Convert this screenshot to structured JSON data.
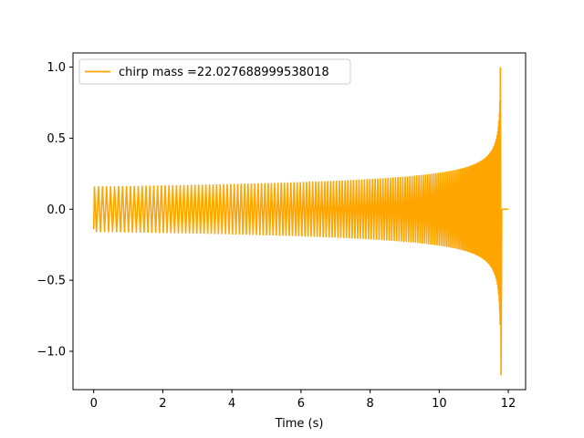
{
  "chart_data": {
    "type": "line",
    "title": "",
    "xlabel": "Time (s)",
    "ylabel": "",
    "xlim": [
      -0.6,
      12.5
    ],
    "ylim": [
      -1.27,
      1.1
    ],
    "xticks": [
      0,
      2,
      4,
      6,
      8,
      10,
      12
    ],
    "xtick_labels": [
      "0",
      "2",
      "4",
      "6",
      "8",
      "10",
      "12"
    ],
    "yticks": [
      1.0,
      0.5,
      0.0,
      -0.5,
      -1.0
    ],
    "ytick_labels": [
      "1.0",
      "0.5",
      "0.0",
      "−0.5",
      "−1.0"
    ],
    "grid": false,
    "legend": {
      "placement": "upper-left"
    },
    "series": [
      {
        "name": "chirp mass =22.027688999538018",
        "color": "#ffa500",
        "waveform": "chirp",
        "start_time": 0.0,
        "merger_time": 11.78,
        "end_time": 12.0,
        "initial_amplitude": 0.16,
        "peak_max": 1.0,
        "peak_min": -1.17
      }
    ]
  }
}
